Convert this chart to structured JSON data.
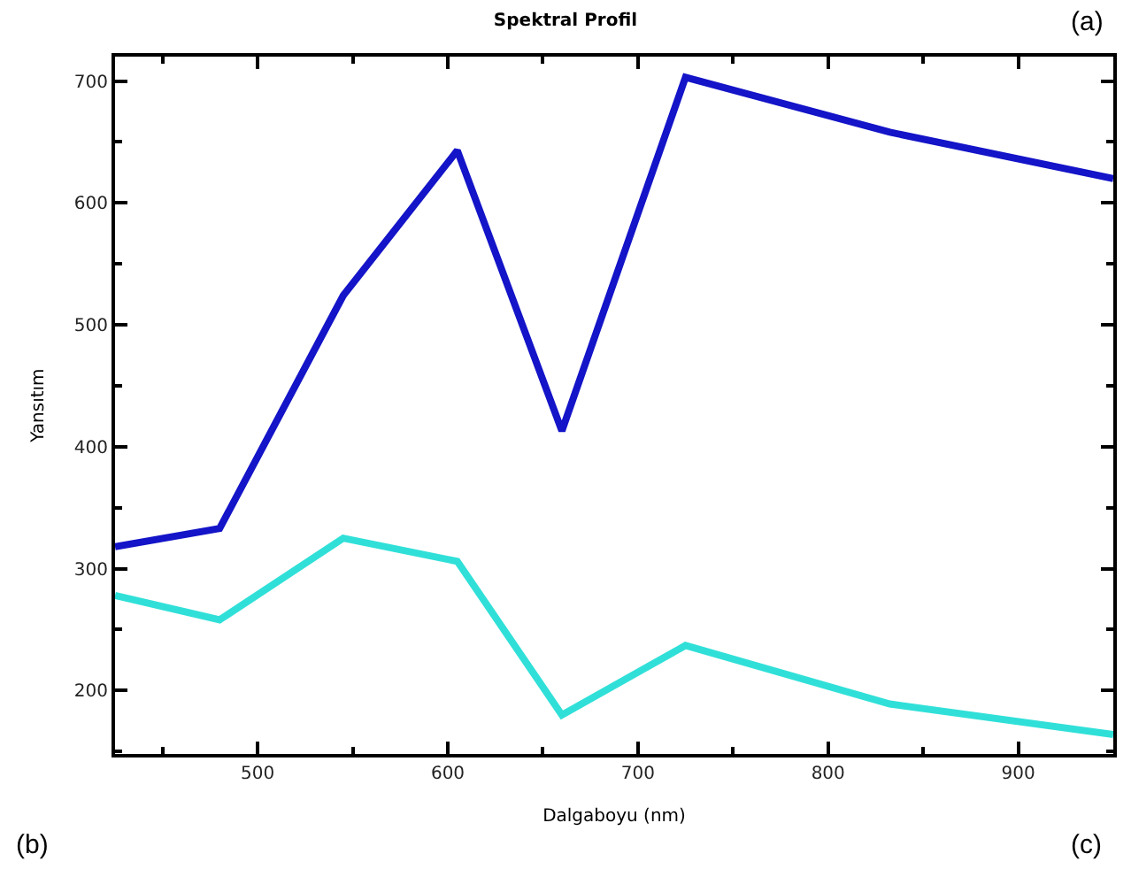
{
  "chart_data": {
    "type": "line",
    "title": "Spektral Profil",
    "xlabel": "Dalgaboyu (nm)",
    "ylabel": "Yansıtım",
    "x": [
      425,
      480,
      545,
      605,
      660,
      725,
      832.5,
      950
    ],
    "series": [
      {
        "color": "#1414c8",
        "values": [
          318,
          333,
          524,
          643,
          413,
          703,
          658,
          620
        ]
      },
      {
        "color": "#30e0d8",
        "values": [
          278,
          258,
          325,
          306,
          180,
          237,
          189,
          164
        ]
      }
    ],
    "xlim": [
      425,
      950
    ],
    "xticks": [
      500,
      600,
      700,
      800,
      900
    ],
    "ylim": [
      148,
      720
    ],
    "yticks": [
      200,
      300,
      400,
      500,
      600,
      700
    ],
    "marker": "none",
    "line_style": "solid",
    "annotations": [
      "(a)",
      "(b)",
      "(c)"
    ]
  }
}
